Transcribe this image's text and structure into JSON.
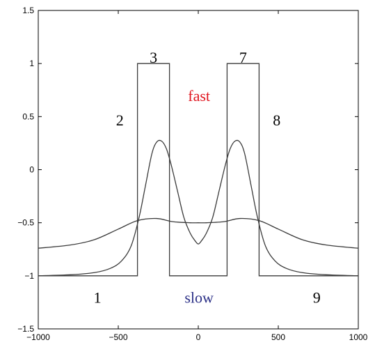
{
  "chart_data": {
    "type": "line",
    "title": "",
    "xlabel": "",
    "ylabel": "",
    "xlim": [
      -1000,
      1000
    ],
    "ylim": [
      -1.5,
      1.5
    ],
    "grid": false,
    "x_ticks": [
      -1000,
      -500,
      0,
      500,
      1000
    ],
    "y_ticks": [
      -1.5,
      -1,
      -0.5,
      0,
      0.5,
      1,
      1.5
    ],
    "x_tick_labels": [
      "−1000",
      "−500",
      "0",
      "500",
      "1000"
    ],
    "y_tick_labels": [
      "−1.5",
      "−1",
      "−0.5",
      "0",
      "0.5",
      "1",
      "1.5"
    ],
    "series": [
      {
        "x": [
          -1000,
          -380,
          -380,
          -180,
          -180,
          180,
          180,
          380,
          380,
          1000
        ],
        "y": [
          -1,
          -1,
          1,
          1,
          -1,
          -1,
          1,
          1,
          -1,
          -1
        ]
      },
      {
        "x": [
          -1000,
          -800,
          -650,
          -550,
          -480,
          -420,
          -370,
          -330,
          -290,
          -260,
          -230,
          -200,
          -170,
          -130,
          -90,
          -50,
          -20,
          0,
          20,
          50,
          90,
          130,
          170,
          200,
          230,
          260,
          290,
          330,
          370,
          420,
          480,
          550,
          650,
          800,
          1000
        ],
        "y": [
          -1.0,
          -0.99,
          -0.97,
          -0.93,
          -0.86,
          -0.72,
          -0.45,
          -0.15,
          0.15,
          0.26,
          0.27,
          0.2,
          0.05,
          -0.2,
          -0.45,
          -0.6,
          -0.67,
          -0.7,
          -0.67,
          -0.6,
          -0.45,
          -0.2,
          0.05,
          0.2,
          0.27,
          0.26,
          0.15,
          -0.15,
          -0.45,
          -0.72,
          -0.86,
          -0.93,
          -0.97,
          -0.99,
          -1.0
        ]
      },
      {
        "x": [
          -1000,
          -800,
          -650,
          -500,
          -380,
          -260,
          -160,
          -50,
          0,
          50,
          160,
          260,
          380,
          500,
          650,
          800,
          1000
        ],
        "y": [
          -0.74,
          -0.71,
          -0.66,
          -0.56,
          -0.48,
          -0.46,
          -0.49,
          -0.5,
          -0.5,
          -0.5,
          -0.49,
          -0.46,
          -0.48,
          -0.56,
          -0.66,
          -0.71,
          -0.74
        ]
      }
    ],
    "annotations": [
      {
        "text": "1",
        "x": -630,
        "y": -1.2,
        "color": "#000000"
      },
      {
        "text": "2",
        "x": -490,
        "y": 0.47,
        "color": "#000000"
      },
      {
        "text": "3",
        "x": -280,
        "y": 1.06,
        "color": "#000000"
      },
      {
        "text": "fast",
        "x": 5,
        "y": 0.7,
        "color": "#e0141e"
      },
      {
        "text": "7",
        "x": 280,
        "y": 1.06,
        "color": "#000000"
      },
      {
        "text": "8",
        "x": 490,
        "y": 0.47,
        "color": "#000000"
      },
      {
        "text": "slow",
        "x": 5,
        "y": -1.2,
        "color": "#2b2f86"
      },
      {
        "text": "9",
        "x": 740,
        "y": -1.2,
        "color": "#000000"
      }
    ]
  }
}
